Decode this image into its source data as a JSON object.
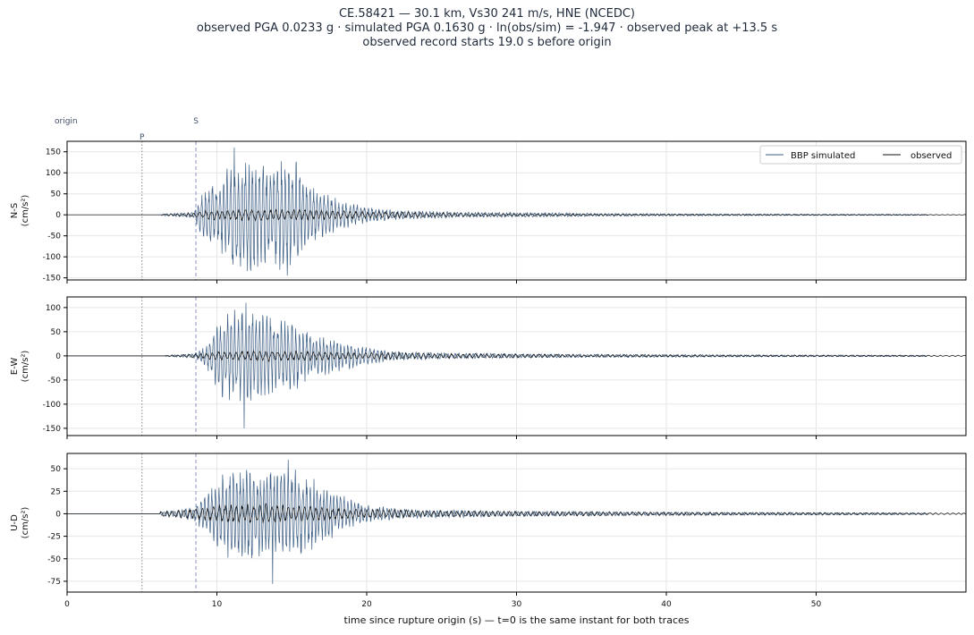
{
  "title_lines": [
    "CE.58421  —  30.1 km, Vs30 241 m/s, HNE (NCEDC)",
    "observed PGA 0.0233 g   ·   simulated PGA 0.1630 g   ·   ln(obs/sim) = -1.947   ·   observed peak at +13.5 s",
    "observed record starts 19.0 s before origin"
  ],
  "xlabel": "time since rupture origin (s)   —   t=0 is the same instant for both traces",
  "annotations": {
    "origin": "origin",
    "p": "P",
    "s": "S"
  },
  "colors": {
    "simulated": "#3d5f85",
    "observed": "#111111",
    "grid": "#e6e6e6",
    "p_line": "#888888",
    "s_line": "#8a93c0"
  },
  "chart_data": {
    "type": "line",
    "xlim": [
      0,
      60
    ],
    "xticks": [
      0,
      10,
      20,
      30,
      40,
      50
    ],
    "p_arrival": 5.0,
    "s_arrival": 8.6,
    "legend": {
      "placement": "top-right",
      "entries": [
        "BBP simulated",
        "observed"
      ]
    },
    "panels": [
      {
        "component": "N-S",
        "ylabel": "N-S",
        "unit": "(cm/s²)",
        "ylim": [
          -155,
          175
        ],
        "yticks": [
          -150,
          -100,
          -50,
          0,
          50,
          100,
          150
        ],
        "simulated_envelope": [
          [
            6.3,
            2
          ],
          [
            8.5,
            8
          ],
          [
            9.0,
            60
          ],
          [
            10.0,
            80
          ],
          [
            10.6,
            110
          ],
          [
            11.2,
            150
          ],
          [
            12.4,
            135
          ],
          [
            13.2,
            125
          ],
          [
            14.0,
            140
          ],
          [
            15.0,
            155
          ],
          [
            16.0,
            80
          ],
          [
            17.0,
            55
          ],
          [
            18.5,
            35
          ],
          [
            20.0,
            20
          ],
          [
            22.0,
            12
          ],
          [
            26.0,
            7
          ],
          [
            32.0,
            5
          ],
          [
            40.0,
            3
          ],
          [
            48.0,
            2
          ],
          [
            57.0,
            1.5
          ]
        ],
        "simulated_peak": {
          "max": 160,
          "min": -145
        },
        "observed_envelope": [
          [
            6.5,
            1.5
          ],
          [
            8.5,
            5
          ],
          [
            9.5,
            12
          ],
          [
            12.0,
            15
          ],
          [
            14.5,
            14
          ],
          [
            17.0,
            12
          ],
          [
            20.0,
            9
          ],
          [
            24.0,
            6
          ],
          [
            28.0,
            4
          ],
          [
            35.0,
            2.5
          ],
          [
            45.0,
            1.5
          ],
          [
            60.0,
            0.8
          ]
        ],
        "observed_start": 6.4
      },
      {
        "component": "E-W",
        "ylabel": "E-W",
        "unit": "(cm/s²)",
        "ylim": [
          -165,
          122
        ],
        "yticks": [
          -150,
          -100,
          -50,
          0,
          50,
          100
        ],
        "simulated_envelope": [
          [
            6.5,
            1
          ],
          [
            8.5,
            5
          ],
          [
            9.3,
            25
          ],
          [
            10.0,
            70
          ],
          [
            10.6,
            100
          ],
          [
            11.6,
            110
          ],
          [
            12.4,
            100
          ],
          [
            13.5,
            90
          ],
          [
            14.5,
            75
          ],
          [
            15.5,
            70
          ],
          [
            16.5,
            45
          ],
          [
            18.0,
            35
          ],
          [
            20.0,
            20
          ],
          [
            22.0,
            10
          ],
          [
            26.0,
            6
          ],
          [
            32.0,
            4
          ],
          [
            40.0,
            3
          ],
          [
            48.0,
            2
          ],
          [
            60.0,
            1.5
          ]
        ],
        "simulated_peak": {
          "max": 110,
          "min": -150
        },
        "observed_envelope": [
          [
            6.5,
            1
          ],
          [
            8.5,
            4
          ],
          [
            10.0,
            9
          ],
          [
            13.0,
            12
          ],
          [
            16.0,
            10
          ],
          [
            19.0,
            8
          ],
          [
            23.0,
            6
          ],
          [
            28.0,
            5
          ],
          [
            35.0,
            3
          ],
          [
            45.0,
            2
          ],
          [
            60.0,
            1.5
          ]
        ],
        "observed_start": 6.6
      },
      {
        "component": "U-D",
        "ylabel": "U-D",
        "unit": "(cm/s²)",
        "ylim": [
          -87,
          67
        ],
        "yticks": [
          -75,
          -50,
          -25,
          0,
          25,
          50
        ],
        "simulated_envelope": [
          [
            6.2,
            3
          ],
          [
            7.0,
            3
          ],
          [
            8.5,
            8
          ],
          [
            9.3,
            25
          ],
          [
            10.3,
            45
          ],
          [
            11.0,
            55
          ],
          [
            12.0,
            55
          ],
          [
            13.2,
            50
          ],
          [
            14.0,
            52
          ],
          [
            15.0,
            55
          ],
          [
            16.0,
            45
          ],
          [
            17.0,
            35
          ],
          [
            18.5,
            20
          ],
          [
            20.0,
            10
          ],
          [
            23.0,
            5
          ],
          [
            30.0,
            3
          ],
          [
            40.0,
            2
          ],
          [
            50.0,
            1.5
          ],
          [
            57.0,
            1
          ]
        ],
        "simulated_peak": {
          "max": 60,
          "min": -78
        },
        "observed_envelope": [
          [
            6.2,
            3
          ],
          [
            8.5,
            6
          ],
          [
            10.0,
            10
          ],
          [
            13.0,
            12
          ],
          [
            16.0,
            9
          ],
          [
            19.0,
            6
          ],
          [
            24.0,
            4
          ],
          [
            30.0,
            3
          ],
          [
            40.0,
            2
          ],
          [
            50.0,
            1.5
          ],
          [
            60.0,
            1
          ]
        ],
        "observed_start": 6.0
      }
    ]
  }
}
